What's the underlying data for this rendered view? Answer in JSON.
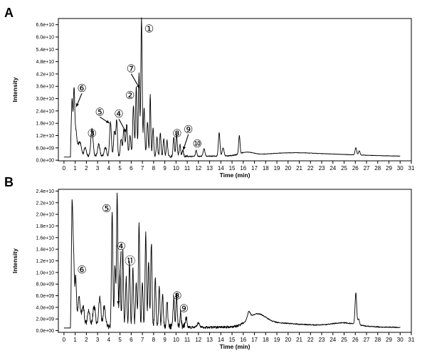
{
  "figure": {
    "panels": [
      "A",
      "B"
    ]
  },
  "chart_data": [
    {
      "panel": "A",
      "type": "line",
      "xlabel": "Time (min)",
      "ylabel": "Intensity",
      "xlim": [
        -0.5,
        31
      ],
      "ylim": [
        -300000000.0,
        69000000000.0
      ],
      "x_ticks": [
        0,
        1,
        2,
        3,
        4,
        5,
        6,
        7,
        8,
        9,
        10,
        11,
        12,
        13,
        14,
        15,
        16,
        17,
        18,
        19,
        20,
        21,
        22,
        23,
        24,
        25,
        26,
        27,
        28,
        29,
        30,
        31
      ],
      "y_ticks": [
        0,
        6000000000.0,
        12000000000.0,
        18000000000.0,
        24000000000.0,
        30000000000.0,
        36000000000.0,
        42000000000.0,
        48000000000.0,
        54000000000.0,
        60000000000.0,
        66000000000.0
      ],
      "y_tick_labels": [
        "0.0e+00",
        "6.0e+09",
        "1.2e+10",
        "1.8e+10",
        "2.4e+10",
        "3.0e+10",
        "3.6e+10",
        "4.2e+10",
        "4.8e+10",
        "5.4e+10",
        "6.0e+10",
        "6.6e+10"
      ],
      "grid": false,
      "baseline": 1700000000.0,
      "noise": 1200000000.0,
      "peaks": [
        [
          0.72,
          27500000000.0,
          0.07
        ],
        [
          0.9,
          29000000000.0,
          0.06
        ],
        [
          1.05,
          12000000000.0,
          0.1
        ],
        [
          1.4,
          7000000000.0,
          0.15
        ],
        [
          1.9,
          4500000000.0,
          0.1
        ],
        [
          2.5,
          13500000000.0,
          0.1
        ],
        [
          3.1,
          6000000000.0,
          0.1
        ],
        [
          3.7,
          4500000000.0,
          0.1
        ],
        [
          4.15,
          16500000000.0,
          0.08
        ],
        [
          4.5,
          12000000000.0,
          0.07
        ],
        [
          4.7,
          17500000000.0,
          0.07
        ],
        [
          5.1,
          8500000000.0,
          0.07
        ],
        [
          5.35,
          13500000000.0,
          0.08
        ],
        [
          5.6,
          15500000000.0,
          0.07
        ],
        [
          5.9,
          10500000000.0,
          0.07
        ],
        [
          6.2,
          24500000000.0,
          0.07
        ],
        [
          6.45,
          34000000000.0,
          0.06
        ],
        [
          6.7,
          40000000000.0,
          0.06
        ],
        [
          6.92,
          67000000000.0,
          0.06
        ],
        [
          7.15,
          23500000000.0,
          0.06
        ],
        [
          7.45,
          16500000000.0,
          0.07
        ],
        [
          7.7,
          30000000000.0,
          0.05
        ],
        [
          7.95,
          13500000000.0,
          0.06
        ],
        [
          8.3,
          9500000000.0,
          0.06
        ],
        [
          8.6,
          11500000000.0,
          0.06
        ],
        [
          8.9,
          8500000000.0,
          0.06
        ],
        [
          9.2,
          7500000000.0,
          0.06
        ],
        [
          9.8,
          9500000000.0,
          0.06
        ],
        [
          10.05,
          11000000000.0,
          0.06
        ],
        [
          10.35,
          5500000000.0,
          0.06
        ],
        [
          10.6,
          3000000000.0,
          0.06
        ],
        [
          11.8,
          3000000000.0,
          0.06
        ],
        [
          12.5,
          3500000000.0,
          0.08
        ],
        [
          13.85,
          11500000000.0,
          0.07
        ],
        [
          14.2,
          4000000000.0,
          0.08
        ],
        [
          15.65,
          9000000000.0,
          0.06
        ],
        [
          26.05,
          3500000000.0,
          0.07
        ],
        [
          26.35,
          2000000000.0,
          0.07
        ]
      ],
      "humps": [
        [
          16.3,
          1500000000.0,
          0.6
        ],
        [
          22.0,
          1300000000.0,
          4.5
        ],
        [
          20.0,
          700000000.0,
          2.0
        ]
      ],
      "annotations": [
        {
          "label": "①",
          "x": 7.6,
          "y": 64000000000.0
        },
        {
          "label": "⑦",
          "x": 6.0,
          "y": 44500000000.0,
          "arrow_to": [
            6.75,
            35000000000.0
          ]
        },
        {
          "label": "②",
          "x": 5.9,
          "y": 31500000000.0
        },
        {
          "label": "⑥",
          "x": 1.6,
          "y": 35000000000.0,
          "arrow_to": [
            1.1,
            26000000000.0
          ]
        },
        {
          "label": "⑤",
          "x": 3.2,
          "y": 23500000000.0,
          "arrow_to": [
            4.05,
            18000000000.0
          ]
        },
        {
          "label": "④",
          "x": 4.9,
          "y": 22500000000.0,
          "arrow_to": [
            5.55,
            13500000000.0
          ]
        },
        {
          "label": "③",
          "x": 2.5,
          "y": 13000000000.0
        },
        {
          "label": "⑧",
          "x": 10.1,
          "y": 13000000000.0
        },
        {
          "label": "⑨",
          "x": 11.1,
          "y": 15000000000.0,
          "arrow_to": [
            10.65,
            5000000000.0
          ]
        },
        {
          "label": "⑩",
          "x": 11.9,
          "y": 8000000000.0
        }
      ]
    },
    {
      "panel": "B",
      "type": "line",
      "xlabel": "Time (min)",
      "ylabel": "Intensity",
      "xlim": [
        -0.5,
        31
      ],
      "ylim": [
        -300000000.0,
        24300000000.0
      ],
      "x_ticks": [
        0,
        1,
        2,
        3,
        4,
        5,
        6,
        7,
        8,
        9,
        10,
        11,
        12,
        13,
        14,
        15,
        16,
        17,
        18,
        19,
        20,
        21,
        22,
        23,
        24,
        25,
        26,
        27,
        28,
        29,
        30,
        31
      ],
      "y_ticks": [
        0,
        2000000000.0,
        4000000000.0,
        6000000000.0,
        8000000000.0,
        10000000000.0,
        12000000000.0,
        14000000000.0,
        16000000000.0,
        18000000000.0,
        20000000000.0,
        22000000000.0,
        24000000000.0
      ],
      "y_tick_labels": [
        "0.0e+00",
        "2.0e+09",
        "4.0e+09",
        "6.0e+09",
        "8.0e+09",
        "1.0e+10",
        "1.2e+10",
        "1.4e+10",
        "1.6e+10",
        "1.8e+10",
        "2.0e+10",
        "2.2e+10",
        "2.4e+10"
      ],
      "grid": false,
      "baseline": 500000000.0,
      "noise": 1000000000.0,
      "peaks": [
        [
          0.72,
          19300000000.0,
          0.06
        ],
        [
          0.85,
          12500000000.0,
          0.07
        ],
        [
          1.05,
          8500000000.0,
          0.07
        ],
        [
          1.35,
          5000000000.0,
          0.1
        ],
        [
          1.7,
          3500000000.0,
          0.12
        ],
        [
          2.2,
          3000000000.0,
          0.12
        ],
        [
          2.7,
          3500000000.0,
          0.12
        ],
        [
          3.2,
          5000000000.0,
          0.1
        ],
        [
          3.6,
          3500000000.0,
          0.1
        ],
        [
          4.3,
          20000000000.0,
          0.06
        ],
        [
          4.55,
          10500000000.0,
          0.06
        ],
        [
          4.75,
          22800000000.0,
          0.06
        ],
        [
          5.0,
          9500000000.0,
          0.06
        ],
        [
          5.25,
          13000000000.0,
          0.06
        ],
        [
          5.55,
          8500000000.0,
          0.06
        ],
        [
          5.85,
          11000000000.0,
          0.06
        ],
        [
          6.15,
          10000000000.0,
          0.06
        ],
        [
          6.45,
          8000000000.0,
          0.06
        ],
        [
          6.7,
          17500000000.0,
          0.06
        ],
        [
          7.0,
          7500000000.0,
          0.06
        ],
        [
          7.3,
          16000000000.0,
          0.06
        ],
        [
          7.55,
          11000000000.0,
          0.06
        ],
        [
          7.8,
          14500000000.0,
          0.06
        ],
        [
          8.15,
          8500000000.0,
          0.06
        ],
        [
          8.5,
          7000000000.0,
          0.06
        ],
        [
          8.8,
          5500000000.0,
          0.06
        ],
        [
          9.2,
          4500000000.0,
          0.06
        ],
        [
          9.8,
          5000000000.0,
          0.06
        ],
        [
          10.05,
          5500000000.0,
          0.06
        ],
        [
          10.4,
          2500000000.0,
          0.06
        ],
        [
          10.9,
          1500000000.0,
          0.08
        ],
        [
          12.0,
          800000000.0,
          0.1
        ],
        [
          16.5,
          1200000000.0,
          0.12
        ],
        [
          26.05,
          5500000000.0,
          0.07
        ],
        [
          26.3,
          1000000000.0,
          0.07
        ]
      ],
      "humps": [
        [
          17.2,
          2000000000.0,
          0.8
        ],
        [
          22.5,
          400000000.0,
          3.5
        ],
        [
          25.0,
          500000000.0,
          1.0
        ],
        [
          19.0,
          500000000.0,
          1.5
        ]
      ],
      "annotations": [
        {
          "label": "⑤",
          "x": 3.8,
          "y": 21000000000.0
        },
        {
          "label": "④",
          "x": 5.1,
          "y": 14500000000.0,
          "arrow_to": [
            4.85,
            4500000000.0
          ]
        },
        {
          "label": "⑪",
          "x": 5.9,
          "y": 12000000000.0
        },
        {
          "label": "⑥",
          "x": 1.6,
          "y": 10500000000.0
        },
        {
          "label": "⑧",
          "x": 10.1,
          "y": 6000000000.0
        },
        {
          "label": "⑨",
          "x": 10.7,
          "y": 3800000000.0
        }
      ]
    }
  ]
}
